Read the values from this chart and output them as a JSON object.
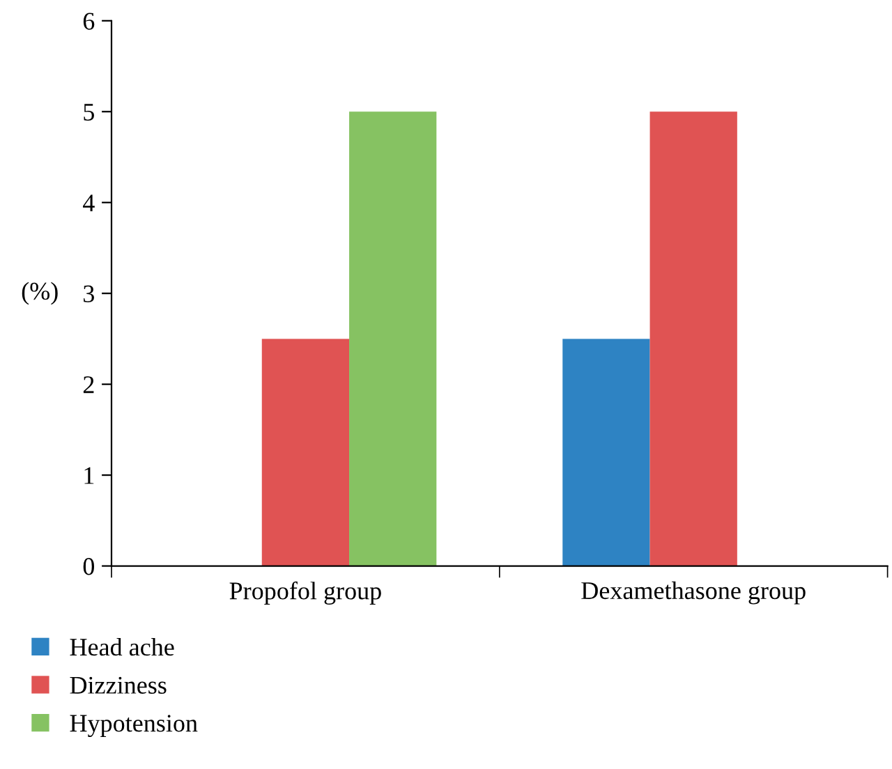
{
  "chart_data": {
    "type": "bar",
    "ylabel": "(%)",
    "categories": [
      "Propofol group",
      "Dexamethasone group"
    ],
    "series": [
      {
        "name": "Head ache",
        "color": "#2e83c3",
        "values": [
          0,
          2.5
        ]
      },
      {
        "name": "Dizziness",
        "color": "#e05353",
        "values": [
          2.5,
          5
        ]
      },
      {
        "name": "Hypotension",
        "color": "#86c262",
        "values": [
          5,
          0
        ]
      }
    ],
    "ylim": [
      0,
      6
    ],
    "yticks": [
      0,
      1,
      2,
      3,
      4,
      5,
      6
    ],
    "grid": false,
    "legend": "bottom left"
  }
}
